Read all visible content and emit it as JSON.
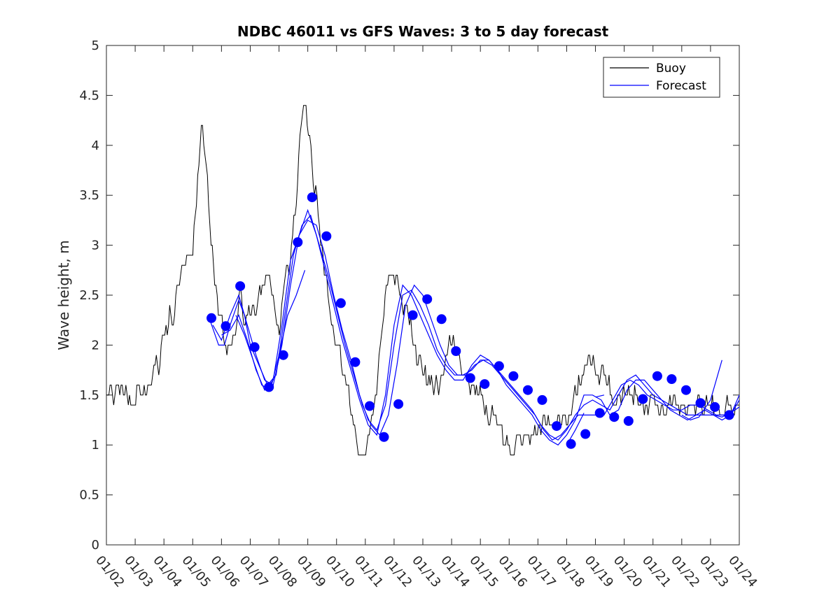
{
  "chart_data": {
    "type": "line",
    "title": "NDBC 46011 vs GFS Waves: 3 to 5 day forecast",
    "xlabel": "",
    "ylabel": "Wave height, m",
    "ylim": [
      0,
      5
    ],
    "xlim": [
      0,
      22
    ],
    "y_ticks": [
      "0",
      "0.5",
      "1",
      "1.5",
      "2",
      "2.5",
      "3",
      "3.5",
      "4",
      "4.5",
      "5"
    ],
    "x_ticks": [
      "01/02",
      "01/03",
      "01/04",
      "01/05",
      "01/06",
      "01/07",
      "01/08",
      "01/09",
      "01/10",
      "01/11",
      "01/12",
      "01/13",
      "01/14",
      "01/15",
      "01/16",
      "01/17",
      "01/18",
      "01/19",
      "01/20",
      "01/21",
      "01/22",
      "01/23",
      "01/24"
    ],
    "legend": {
      "location": "top-right",
      "entries": [
        "Buoy",
        "Forecast"
      ]
    },
    "colors": {
      "buoy": "#000000",
      "forecast": "#0000ff"
    },
    "buoy_trend": {
      "x": [
        0,
        0.3,
        0.5,
        0.8,
        1.0,
        1.3,
        1.5,
        1.8,
        2.0,
        2.3,
        2.5,
        2.8,
        3.0,
        3.1,
        3.2,
        3.35,
        3.5,
        3.65,
        3.8,
        3.95,
        4.1,
        4.3,
        4.5,
        4.65,
        4.8,
        5.0,
        5.2,
        5.4,
        5.55,
        5.7,
        5.9,
        6.0,
        6.2,
        6.4,
        6.5,
        6.6,
        6.8,
        7.0,
        7.2,
        7.4,
        7.6,
        7.8,
        8.0,
        8.2,
        8.4,
        8.6,
        8.8,
        9.0,
        9.3,
        9.6,
        9.8,
        10.0,
        10.2,
        10.4,
        10.6,
        10.8,
        11.0,
        11.2,
        11.4,
        11.6,
        11.8,
        12.0,
        12.2,
        12.4,
        12.6,
        12.8,
        13.0,
        13.2,
        13.4,
        13.6,
        13.8,
        14.0,
        14.2,
        14.4,
        14.6,
        14.8,
        15.0,
        15.2,
        15.4,
        15.6,
        15.8,
        16.0,
        16.2,
        16.4,
        16.6,
        16.8,
        17.0,
        17.2,
        17.4,
        17.6,
        17.8,
        18.0,
        18.3,
        18.6,
        18.9,
        19.2,
        19.5,
        19.8,
        20.0,
        20.2,
        20.4,
        20.6,
        20.8,
        21.0,
        21.2,
        21.4,
        21.6,
        21.8,
        22.0
      ],
      "y": [
        1.5,
        1.5,
        1.6,
        1.5,
        1.5,
        1.55,
        1.6,
        1.8,
        2.1,
        2.3,
        2.6,
        2.8,
        3.0,
        3.3,
        3.8,
        4.2,
        3.6,
        3.0,
        2.6,
        2.2,
        2.0,
        2.0,
        2.2,
        2.5,
        2.3,
        2.3,
        2.3,
        2.6,
        2.8,
        2.6,
        2.4,
        2.2,
        2.6,
        2.8,
        3.2,
        3.5,
        4.3,
        4.3,
        3.7,
        3.2,
        2.7,
        2.4,
        2.1,
        1.8,
        1.5,
        1.2,
        1.0,
        0.9,
        1.4,
        2.3,
        2.7,
        2.8,
        2.5,
        2.3,
        2.1,
        1.9,
        1.7,
        1.7,
        1.6,
        1.6,
        1.9,
        2.0,
        1.9,
        1.7,
        1.6,
        1.55,
        1.5,
        1.4,
        1.3,
        1.2,
        1.1,
        1.0,
        1.0,
        0.95,
        1.0,
        1.1,
        1.15,
        1.2,
        1.2,
        1.2,
        1.25,
        1.3,
        1.4,
        1.6,
        1.7,
        1.8,
        1.8,
        1.7,
        1.6,
        1.5,
        1.5,
        1.5,
        1.45,
        1.4,
        1.4,
        1.4,
        1.4,
        1.4,
        1.4,
        1.4,
        1.4,
        1.4,
        1.4,
        1.4,
        1.4,
        1.4,
        1.4,
        1.4,
        1.4
      ],
      "noise_amplitude": 0.18
    },
    "forecast_markers": {
      "x": [
        3.65,
        4.15,
        4.65,
        5.15,
        5.65,
        6.15,
        6.65,
        7.15,
        7.65,
        8.15,
        8.65,
        9.15,
        9.65,
        10.15,
        10.65,
        11.15,
        11.65,
        12.15,
        12.65,
        13.15,
        13.65,
        14.15,
        14.65,
        15.15,
        15.65,
        16.15,
        16.65,
        17.15,
        17.65,
        18.15,
        18.65,
        19.15,
        19.65,
        20.15,
        20.65,
        21.15,
        21.65
      ],
      "y": [
        2.27,
        2.19,
        2.59,
        1.98,
        1.58,
        1.9,
        3.03,
        3.48,
        3.09,
        2.42,
        1.83,
        1.39,
        1.08,
        1.41,
        2.3,
        2.46,
        2.26,
        1.94,
        1.67,
        1.61,
        1.79,
        1.69,
        1.55,
        1.45,
        1.19,
        1.01,
        1.11,
        1.32,
        1.28,
        1.24,
        1.46,
        1.69,
        1.66,
        1.55,
        1.42,
        1.38,
        1.3
      ]
    },
    "forecast_lines": [
      {
        "x": [
          3.6,
          3.9,
          4.1,
          4.3,
          4.6,
          4.8,
          5.0,
          5.3,
          5.6,
          5.9,
          6.2,
          6.5,
          6.8,
          7.1,
          7.4,
          7.7,
          8.0,
          8.3,
          8.6,
          8.9,
          9.2,
          9.5,
          9.8,
          10.1,
          10.4,
          10.7,
          11.0,
          11.3,
          11.6,
          11.9,
          12.2,
          12.5,
          12.8,
          13.1,
          13.4,
          13.7,
          14.0,
          14.3,
          14.6,
          14.9,
          15.2,
          15.5,
          15.8,
          16.1,
          16.4,
          16.7,
          17.0,
          17.3,
          17.6,
          17.9,
          18.2,
          18.5,
          18.8,
          19.1,
          19.4,
          19.7,
          20.0,
          20.3,
          20.6,
          20.9,
          21.2,
          21.5,
          21.8,
          22.0
        ],
        "y": [
          2.25,
          2.0,
          2.0,
          2.2,
          2.45,
          2.3,
          2.0,
          1.8,
          1.6,
          1.7,
          2.3,
          2.9,
          3.2,
          3.3,
          3.0,
          2.7,
          2.35,
          2.0,
          1.7,
          1.4,
          1.2,
          1.1,
          1.3,
          1.8,
          2.4,
          2.6,
          2.5,
          2.25,
          2.0,
          1.8,
          1.7,
          1.7,
          1.8,
          1.85,
          1.8,
          1.7,
          1.6,
          1.5,
          1.4,
          1.3,
          1.15,
          1.05,
          1.1,
          1.2,
          1.3,
          1.3,
          1.3,
          1.3,
          1.45,
          1.6,
          1.65,
          1.6,
          1.5,
          1.45,
          1.4,
          1.35,
          1.35,
          1.4,
          1.4,
          1.35,
          1.3,
          1.3,
          1.35,
          1.45
        ]
      },
      {
        "x": [
          3.7,
          4.0,
          4.3,
          4.6,
          4.9,
          5.2,
          5.5,
          5.8,
          6.1,
          6.4,
          6.7,
          7.0,
          7.3,
          7.6,
          7.9,
          8.2,
          8.5,
          8.8,
          9.1,
          9.4,
          9.7,
          10.0,
          10.3,
          10.6,
          10.9,
          11.2,
          11.5,
          11.8,
          12.1,
          12.4,
          12.7,
          13.0,
          13.3,
          13.6,
          13.9,
          14.2,
          14.5,
          14.8,
          15.1,
          15.4,
          15.7,
          16.0,
          16.3,
          16.6,
          16.9,
          17.2,
          17.5,
          17.8,
          18.1,
          18.4,
          18.7,
          19.0,
          19.3,
          19.6,
          19.9,
          20.2,
          20.5,
          20.8,
          21.1,
          21.4,
          21.7,
          22.0
        ],
        "y": [
          2.2,
          2.05,
          2.3,
          2.5,
          2.2,
          1.9,
          1.65,
          1.6,
          2.0,
          2.6,
          3.1,
          3.25,
          3.2,
          2.9,
          2.5,
          2.15,
          1.85,
          1.5,
          1.25,
          1.15,
          1.4,
          2.0,
          2.5,
          2.55,
          2.4,
          2.2,
          1.95,
          1.8,
          1.7,
          1.7,
          1.75,
          1.85,
          1.85,
          1.75,
          1.65,
          1.55,
          1.45,
          1.35,
          1.2,
          1.1,
          1.05,
          1.15,
          1.3,
          1.4,
          1.45,
          1.4,
          1.35,
          1.5,
          1.65,
          1.7,
          1.6,
          1.5,
          1.45,
          1.4,
          1.35,
          1.3,
          1.3,
          1.3,
          1.3,
          1.25,
          1.3,
          1.5
        ]
      },
      {
        "x": [
          4.0,
          4.3,
          4.6,
          4.9,
          5.2,
          5.5,
          5.8,
          6.1,
          6.4,
          6.7,
          7.0,
          7.3,
          7.6,
          7.9,
          8.2,
          8.5,
          8.8,
          9.1,
          9.4,
          9.7,
          10.0,
          10.3,
          10.6,
          10.9,
          11.2,
          11.5,
          11.8,
          12.1,
          12.4,
          12.7,
          13.0,
          13.3,
          13.6,
          13.9,
          14.2,
          14.5,
          14.8,
          15.1,
          15.4,
          15.7,
          16.0,
          16.3,
          16.6,
          16.9,
          17.2,
          17.5,
          17.8,
          18.1,
          18.4,
          18.7,
          19.0,
          19.3,
          19.6,
          19.9,
          20.2,
          20.5,
          20.8,
          21.1,
          21.4,
          21.7,
          22.0
        ],
        "y": [
          2.1,
          2.15,
          2.3,
          2.05,
          1.75,
          1.55,
          1.65,
          2.2,
          2.85,
          3.1,
          3.35,
          3.1,
          2.75,
          2.4,
          2.05,
          1.75,
          1.45,
          1.2,
          1.1,
          1.5,
          2.2,
          2.6,
          2.5,
          2.3,
          2.1,
          1.9,
          1.75,
          1.65,
          1.65,
          1.8,
          1.9,
          1.85,
          1.75,
          1.6,
          1.5,
          1.4,
          1.3,
          1.15,
          1.05,
          1.0,
          1.1,
          1.25,
          1.5,
          1.5,
          1.45,
          1.3,
          1.35,
          1.55,
          1.65,
          1.65,
          1.55,
          1.45,
          1.35,
          1.3,
          1.25,
          1.3,
          1.35,
          1.3,
          1.28,
          1.32,
          1.38
        ]
      },
      {
        "x": [
          4.5,
          4.8,
          5.1,
          5.4,
          5.7,
          6.0,
          6.3,
          6.6,
          6.9
        ],
        "y": [
          2.3,
          2.1,
          1.85,
          1.6,
          1.55,
          1.9,
          2.3,
          2.5,
          2.75
        ]
      },
      {
        "x": [
          16.0,
          16.3,
          16.6
        ],
        "y": [
          1.0,
          1.15,
          1.32
        ]
      },
      {
        "x": [
          17.0,
          17.3
        ],
        "y": [
          1.48,
          1.5
        ]
      },
      {
        "x": [
          20.0,
          20.3,
          20.6,
          21.0,
          21.2,
          21.4
        ],
        "y": [
          1.3,
          1.25,
          1.28,
          1.45,
          1.65,
          1.85
        ]
      }
    ]
  }
}
